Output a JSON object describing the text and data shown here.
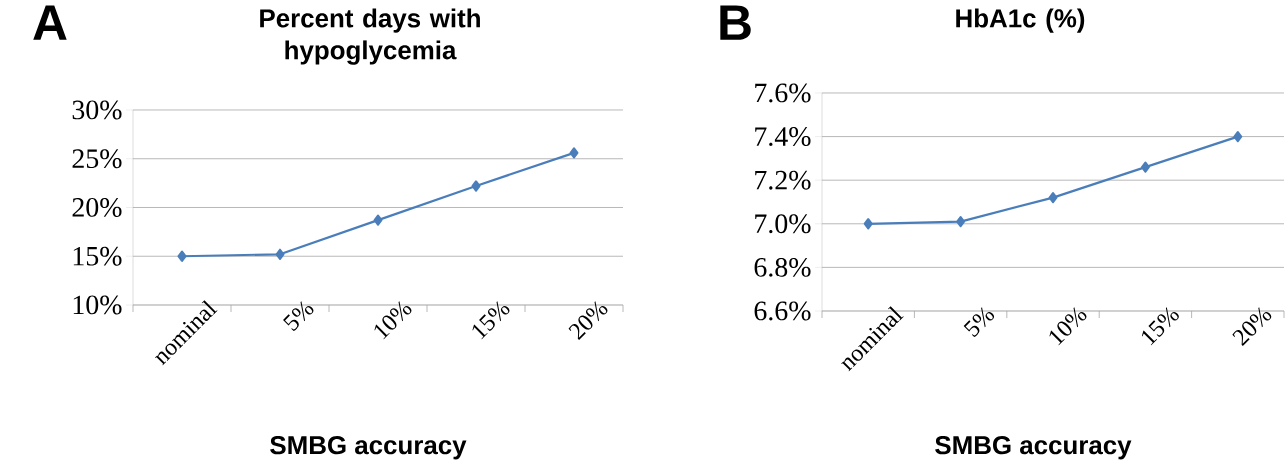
{
  "chart_data": [
    {
      "type": "line",
      "title": "Percent days with hypoglycemia",
      "xlabel": "SMBG accuracy",
      "annotations": [
        "A"
      ],
      "categories": [
        "nominal",
        "5%",
        "10%",
        "15%",
        "20%"
      ],
      "series": [
        {
          "color": "#4a7ebb",
          "values": [
            15.0,
            15.2,
            18.7,
            22.2,
            25.6
          ]
        }
      ],
      "ylim": [
        10,
        30
      ],
      "yticks": [
        {
          "value": 10,
          "label": "10%"
        },
        {
          "value": 15,
          "label": "15%"
        },
        {
          "value": 20,
          "label": "20%"
        },
        {
          "value": 25,
          "label": "25%"
        },
        {
          "value": 30,
          "label": "30%"
        }
      ],
      "grid": "y",
      "marker": "diamond"
    },
    {
      "type": "line",
      "title": "HbA1c (%)",
      "xlabel": "SMBG accuracy",
      "annotations": [
        "B"
      ],
      "categories": [
        "nominal",
        "5%",
        "10%",
        "15%",
        "20%"
      ],
      "series": [
        {
          "color": "#4a7ebb",
          "values": [
            7.0,
            7.01,
            7.12,
            7.26,
            7.4
          ]
        }
      ],
      "ylim": [
        6.6,
        7.6
      ],
      "yticks": [
        {
          "value": 6.6,
          "label": "6.6%"
        },
        {
          "value": 6.8,
          "label": "6.8%"
        },
        {
          "value": 7.0,
          "label": "7.0%"
        },
        {
          "value": 7.2,
          "label": "7.2%"
        },
        {
          "value": 7.4,
          "label": "7.4%"
        },
        {
          "value": 7.6,
          "label": "7.6%"
        }
      ],
      "grid": "y",
      "marker": "diamond"
    }
  ]
}
